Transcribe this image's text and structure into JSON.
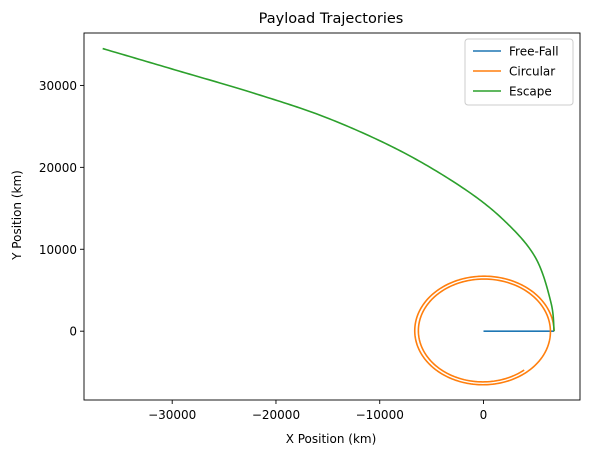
{
  "chart_data": {
    "type": "line",
    "title": "Payload Trajectories",
    "xlabel": "X Position (km)",
    "ylabel": "Y Position (km)",
    "xlim": [
      -38500,
      9300
    ],
    "ylim": [
      -8400,
      36400
    ],
    "xticks": [
      -30000,
      -20000,
      -10000,
      0
    ],
    "xtick_labels": [
      "−30000",
      "−20000",
      "−10000",
      "0"
    ],
    "yticks": [
      0,
      10000,
      20000,
      30000
    ],
    "ytick_labels": [
      "0",
      "10000",
      "20000",
      "30000"
    ],
    "grid": false,
    "legend_position": "top-right",
    "series": [
      {
        "name": "Free-Fall",
        "color": "#1f77b4",
        "x": [
          0,
          6800
        ],
        "y": [
          0,
          0
        ]
      },
      {
        "name": "Circular",
        "color": "#ff7f0e",
        "kind": "spiral",
        "r_start": 6800,
        "r_end": 6150,
        "turns": 1.86,
        "x": [
          6800,
          0,
          -6600,
          0,
          6350,
          0,
          -6250,
          0,
          4600
        ],
        "y": [
          0,
          6750,
          0,
          -6550,
          0,
          6400,
          0,
          -6300,
          -4000
        ]
      },
      {
        "name": "Escape",
        "color": "#2ca02c",
        "x": [
          6800,
          6500,
          5000,
          2000,
          -2000,
          -8000,
          -15000,
          -22000,
          -30000,
          -36700
        ],
        "y": [
          0,
          3500,
          9000,
          13500,
          17500,
          22000,
          26000,
          29000,
          32000,
          34500
        ]
      }
    ]
  }
}
